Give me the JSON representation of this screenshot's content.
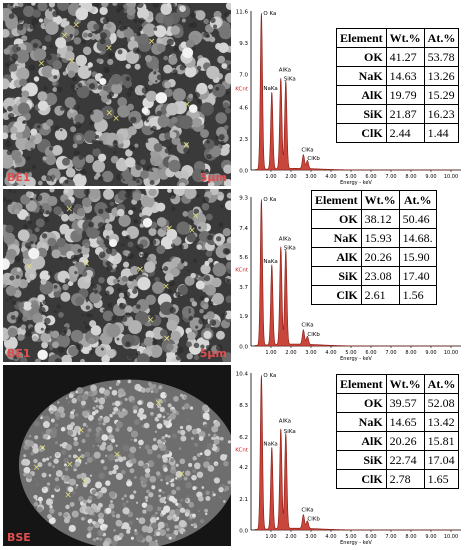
{
  "panels": [
    {
      "image_label": "BE1",
      "scale_label": "5μm",
      "spectrum": {
        "y_ticks": [
          "11.6",
          "9.3",
          "7.0",
          "4.6",
          "2.3",
          "0.0"
        ],
        "y_max": 11.6,
        "unit_label": "KCnt",
        "x_ticks": [
          "1.00",
          "2.00",
          "3.00",
          "4.00",
          "5.00",
          "6.00",
          "7.00",
          "8.00",
          "9.00",
          "10.00"
        ],
        "x_label": "Energy - keV",
        "peaks": [
          {
            "label": "O Ka",
            "energy": 0.52,
            "height": 11.4
          },
          {
            "label": "NaKa",
            "energy": 1.04,
            "height": 5.6
          },
          {
            "label": "AlKa",
            "energy": 1.49,
            "height": 6.6
          },
          {
            "label": "SiKa",
            "energy": 1.74,
            "height": 6.4
          },
          {
            "label": "ClKa",
            "energy": 2.62,
            "height": 1.0
          },
          {
            "label": "ClKb",
            "energy": 2.82,
            "height": 0.6
          }
        ]
      },
      "table": {
        "headers": [
          "Element",
          "Wt.%",
          "At.%"
        ],
        "rows": [
          [
            "OK",
            "41.27",
            "53.78"
          ],
          [
            "NaK",
            "14.63",
            "13.26"
          ],
          [
            "AlK",
            "19.79",
            "15.29"
          ],
          [
            "SiK",
            "21.87",
            "16.23"
          ],
          [
            "ClK",
            "2.44",
            "1.44"
          ]
        ]
      }
    },
    {
      "image_label": "BE1",
      "scale_label": "5μm",
      "spectrum": {
        "y_ticks": [
          "9.3",
          "7.4",
          "5.6",
          "3.7",
          "1.9",
          "0.0"
        ],
        "y_max": 9.3,
        "unit_label": "KCnt",
        "x_ticks": [
          "1.00",
          "2.00",
          "3.00",
          "4.00",
          "5.00",
          "6.00",
          "7.00",
          "8.00",
          "9.00",
          "10.00"
        ],
        "x_label": "Energy - keV",
        "peaks": [
          {
            "label": "O Ka",
            "energy": 0.52,
            "height": 9.1
          },
          {
            "label": "NaKa",
            "energy": 1.04,
            "height": 5.0
          },
          {
            "label": "AlKa",
            "energy": 1.49,
            "height": 6.1
          },
          {
            "label": "SiKa",
            "energy": 1.74,
            "height": 5.9
          },
          {
            "label": "ClKa",
            "energy": 2.62,
            "height": 0.9
          },
          {
            "label": "ClKb",
            "energy": 2.82,
            "height": 0.5
          }
        ]
      },
      "table": {
        "headers": [
          "Element",
          "Wt.%",
          "At.%"
        ],
        "rows": [
          [
            "OK",
            "38.12",
            "50.46"
          ],
          [
            "NaK",
            "15.93",
            "14.68."
          ],
          [
            "AlK",
            "20.26",
            "15.90"
          ],
          [
            "SiK",
            "23.08",
            "17.40"
          ],
          [
            "ClK",
            "2.61",
            "1.56"
          ]
        ]
      }
    },
    {
      "image_label": "BSE",
      "scale_label": "",
      "spectrum": {
        "y_ticks": [
          "10.4",
          "8.3",
          "6.2",
          "4.2",
          "2.1",
          "0.0"
        ],
        "y_max": 10.4,
        "unit_label": "KCnt",
        "x_ticks": [
          "1.00",
          "2.00",
          "3.00",
          "4.00",
          "5.00",
          "6.00",
          "7.00",
          "8.00",
          "9.00",
          "10.00"
        ],
        "x_label": "Energy - keV",
        "peaks": [
          {
            "label": "O Ka",
            "energy": 0.52,
            "height": 10.2
          },
          {
            "label": "NaKa",
            "energy": 1.04,
            "height": 5.4
          },
          {
            "label": "AlKa",
            "energy": 1.49,
            "height": 6.6
          },
          {
            "label": "SiKa",
            "energy": 1.74,
            "height": 6.3
          },
          {
            "label": "ClKa",
            "energy": 2.62,
            "height": 0.9
          },
          {
            "label": "ClKb",
            "energy": 2.82,
            "height": 0.5
          }
        ]
      },
      "table": {
        "headers": [
          "Element",
          "Wt.%",
          "At.%"
        ],
        "rows": [
          [
            "OK",
            "39.57",
            "52.08"
          ],
          [
            "NaK",
            "14.65",
            "13.42"
          ],
          [
            "AlK",
            "20.26",
            "15.81"
          ],
          [
            "SiK",
            "22.74",
            "17.04"
          ],
          [
            "ClK",
            "2.78",
            "1.65"
          ]
        ]
      }
    }
  ],
  "colors": {
    "spectrum_fill": "#c8463c",
    "spectrum_line": "#8b1a12",
    "label_red": "#cc2222",
    "micrograph_bg": "#3a3a3a",
    "particle": "#b5b5b5"
  }
}
